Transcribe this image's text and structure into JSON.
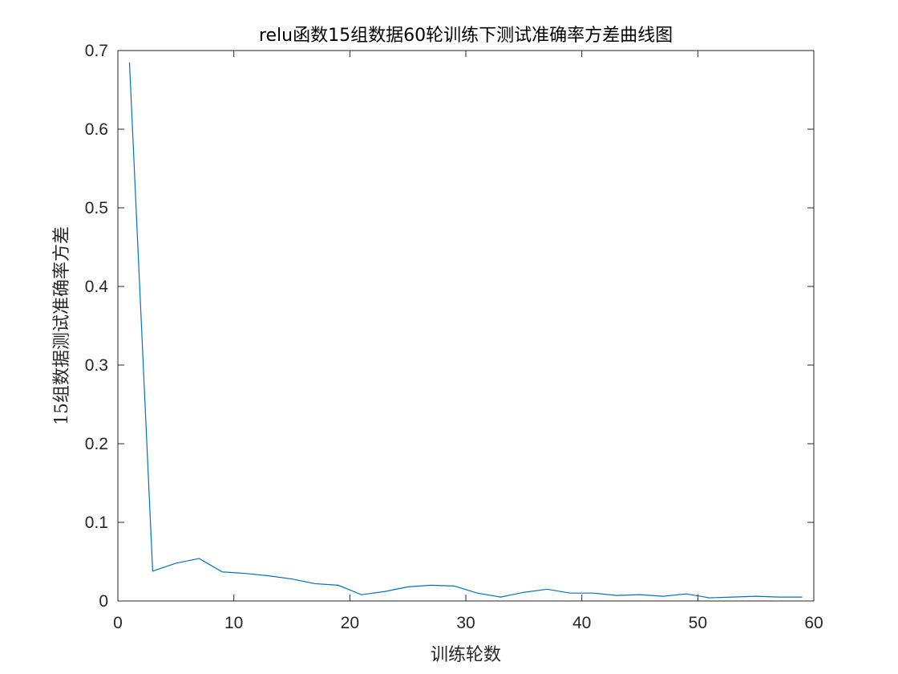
{
  "chart_data": {
    "type": "line",
    "title": "relu函数15组数据60轮训练下测试准确率方差曲线图",
    "xlabel": "训练轮数",
    "ylabel": "15组数据测试准确率方差",
    "xlim": [
      0,
      60
    ],
    "ylim": [
      0,
      0.7
    ],
    "xticks": [
      0,
      10,
      20,
      30,
      40,
      50,
      60
    ],
    "xtick_labels": [
      "0",
      "10",
      "20",
      "30",
      "40",
      "50",
      "60"
    ],
    "yticks": [
      0,
      0.1,
      0.2,
      0.3,
      0.4,
      0.5,
      0.6,
      0.7
    ],
    "ytick_labels": [
      "0",
      "0.1",
      "0.2",
      "0.3",
      "0.4",
      "0.5",
      "0.6",
      "0.7"
    ],
    "grid": false,
    "series": [
      {
        "color": "#0072BD",
        "x": [
          1,
          3,
          5,
          7,
          9,
          11,
          13,
          15,
          17,
          19,
          21,
          23,
          25,
          27,
          29,
          31,
          33,
          35,
          37,
          39,
          41,
          43,
          45,
          47,
          49,
          51,
          53,
          55,
          57,
          59
        ],
        "values": [
          0.685,
          0.038,
          0.048,
          0.054,
          0.037,
          0.035,
          0.032,
          0.028,
          0.022,
          0.02,
          0.008,
          0.012,
          0.018,
          0.02,
          0.019,
          0.01,
          0.005,
          0.011,
          0.015,
          0.01,
          0.01,
          0.007,
          0.008,
          0.006,
          0.009,
          0.004,
          0.005,
          0.006,
          0.005,
          0.005
        ]
      }
    ]
  }
}
